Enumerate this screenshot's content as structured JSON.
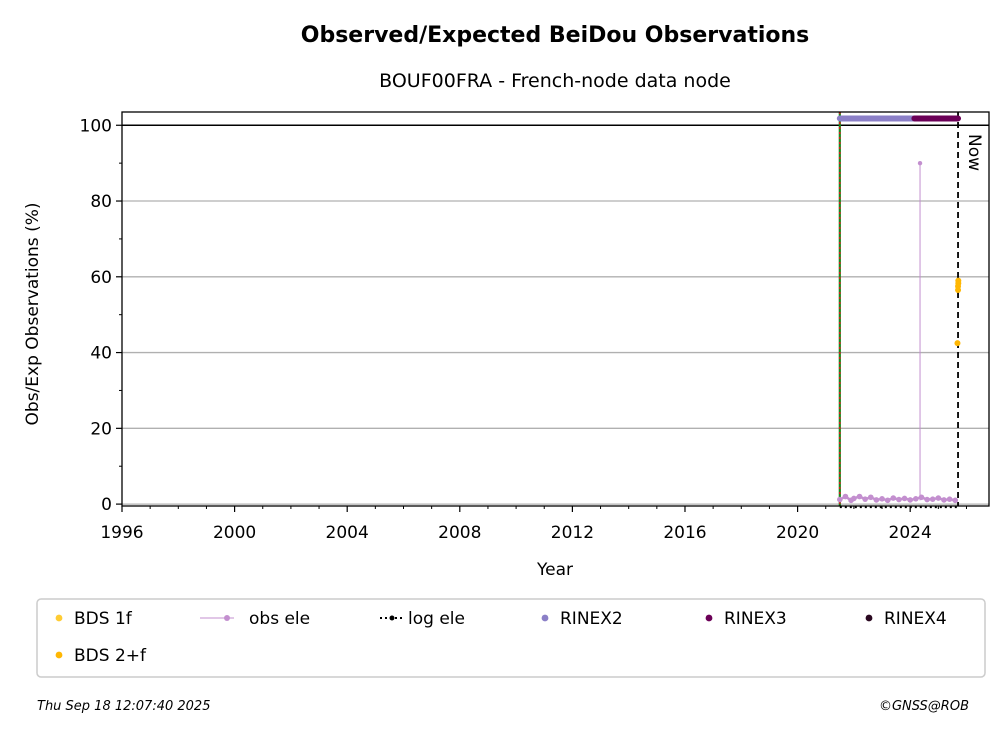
{
  "chart_data": {
    "type": "scatter",
    "title": "Observed/Expected BeiDou Observations",
    "subtitle": "BOUF00FRA - French-node data node",
    "xlabel": "Year",
    "ylabel": "Obs/Exp Observations (%)",
    "xlim": [
      1996,
      2026.8
    ],
    "ylim": [
      -0.5,
      103.5
    ],
    "x_ticks": [
      1996,
      2000,
      2004,
      2008,
      2012,
      2016,
      2020,
      2024
    ],
    "y_ticks": [
      0,
      20,
      40,
      60,
      80,
      100
    ],
    "grid": "y-major",
    "reference_line_y": 100,
    "now_label": "Now",
    "now_x": 2025.7,
    "install_x": 2021.5,
    "series": [
      {
        "name": "BDS 1f",
        "color": "#ffcc33",
        "points": []
      },
      {
        "name": "obs ele",
        "color": "#c38fcf",
        "points": [
          [
            2021.5,
            1.2
          ],
          [
            2021.7,
            2.0
          ],
          [
            2021.9,
            1.0
          ],
          [
            2022.0,
            1.5
          ],
          [
            2022.2,
            2.0
          ],
          [
            2022.4,
            1.3
          ],
          [
            2022.6,
            1.8
          ],
          [
            2022.8,
            1.1
          ],
          [
            2023.0,
            1.4
          ],
          [
            2023.2,
            1.0
          ],
          [
            2023.4,
            1.6
          ],
          [
            2023.6,
            1.2
          ],
          [
            2023.8,
            1.5
          ],
          [
            2024.0,
            1.1
          ],
          [
            2024.2,
            1.4
          ],
          [
            2024.4,
            1.8
          ],
          [
            2024.6,
            1.2
          ],
          [
            2024.8,
            1.3
          ],
          [
            2025.0,
            1.6
          ],
          [
            2025.2,
            1.1
          ],
          [
            2025.4,
            1.3
          ],
          [
            2025.6,
            1.0
          ]
        ],
        "spike": {
          "x": 2024.35,
          "y": 90
        }
      },
      {
        "name": "log ele",
        "color": "#000000",
        "points": [
          [
            2021.5,
            0
          ],
          [
            2025.7,
            0
          ]
        ]
      },
      {
        "name": "RINEX2",
        "color": "#8b7fc7",
        "x_range": [
          2021.5,
          2024.15
        ],
        "y": 101.8
      },
      {
        "name": "RINEX3",
        "color": "#6b0057",
        "x_range": [
          2024.15,
          2025.7
        ],
        "y": 101.8
      },
      {
        "name": "RINEX4",
        "color": "#2a0820",
        "points": []
      },
      {
        "name": "BDS 2+f",
        "color": "#ffb703",
        "points": [
          [
            2025.68,
            42.5
          ],
          [
            2025.7,
            56.5
          ],
          [
            2025.7,
            57.5
          ],
          [
            2025.71,
            58.3
          ],
          [
            2025.71,
            59.0
          ]
        ]
      }
    ]
  },
  "legend": {
    "items": [
      {
        "label": "BDS 1f",
        "color": "#ffcc33",
        "style": "dot"
      },
      {
        "label": "obs ele",
        "color": "#c38fcf",
        "style": "line-dot"
      },
      {
        "label": "log ele",
        "color": "#000000",
        "style": "dotted-dot"
      },
      {
        "label": "RINEX2",
        "color": "#8b7fc7",
        "style": "dot"
      },
      {
        "label": "RINEX3",
        "color": "#6b0057",
        "style": "dot"
      },
      {
        "label": "RINEX4",
        "color": "#2a0820",
        "style": "dot"
      },
      {
        "label": "BDS 2+f",
        "color": "#ffb703",
        "style": "dot"
      }
    ]
  },
  "footer": {
    "timestamp": "Thu Sep 18 12:07:40 2025",
    "credit": "©GNSS@ROB"
  }
}
